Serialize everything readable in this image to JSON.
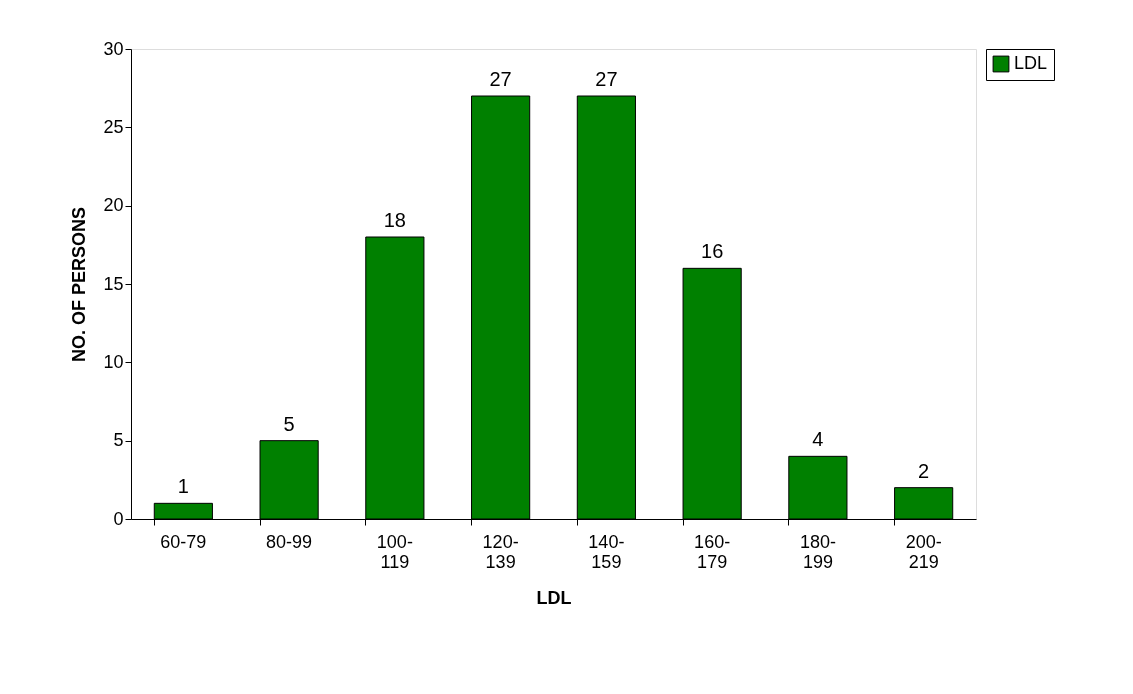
{
  "chart_data": {
    "type": "bar",
    "xlabel": "LDL",
    "ylabel": "NO. OF PERSONS",
    "categories": [
      "60-79",
      "80-99",
      "100-119",
      "120-139",
      "140-159",
      "160-179",
      "180-199",
      "200-219"
    ],
    "series": [
      {
        "name": "LDL",
        "color": "#008000",
        "values": [
          1,
          5,
          18,
          27,
          27,
          16,
          4,
          2
        ]
      }
    ],
    "ylim": [
      0,
      30
    ],
    "yticks": [
      0,
      5,
      10,
      15,
      20,
      25,
      30
    ],
    "grid": false,
    "legend": "right",
    "data_labels": true
  }
}
